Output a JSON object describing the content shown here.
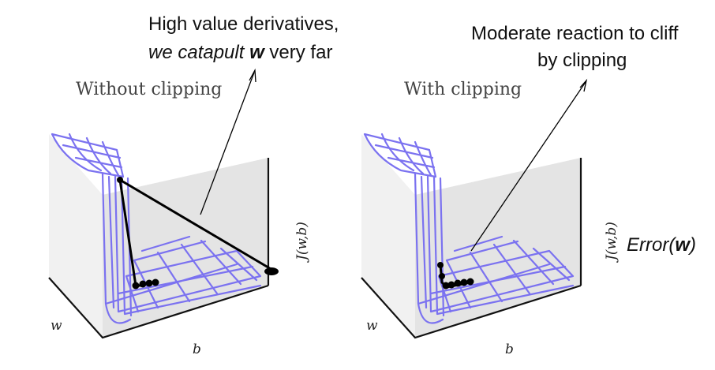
{
  "annotations": {
    "left_line1": "High value derivatives,",
    "left_line2_a": "we catapult",
    "left_line2_w": "w",
    "left_line2_b": "very far",
    "right_line1": "Moderate reaction to cliff",
    "right_line2": "by clipping",
    "error_label_a": "Error(",
    "error_label_w": "w",
    "error_label_b": ")"
  },
  "panels": [
    {
      "title": "Without clipping",
      "axis_w": "w",
      "axis_b": "b",
      "axis_j": "J(w,b)"
    },
    {
      "title": "With clipping",
      "axis_w": "w",
      "axis_b": "b",
      "axis_j": "J(w,b)"
    }
  ],
  "colors": {
    "surface": "#7b72f0",
    "trajectory": "#000000",
    "box_edge": "#111111"
  }
}
